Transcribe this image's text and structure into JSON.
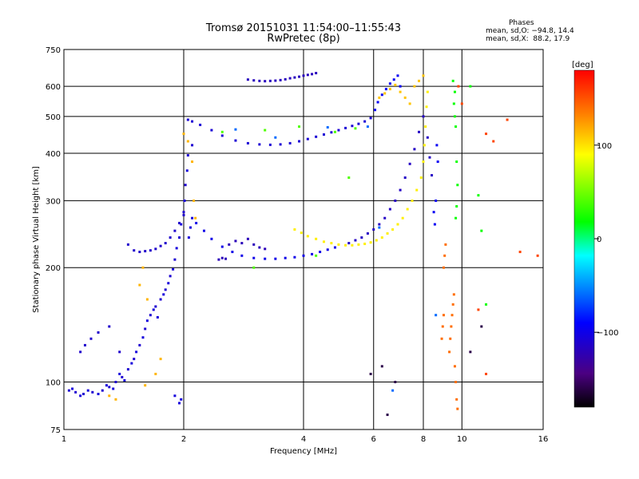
{
  "header": {
    "title_line1": "Tromsø 20151031 11:54:00–11:55:43",
    "title_line2": "RwPretec (8p)",
    "stats_title": "Phases",
    "stats_line1": "mean, sd,O: −94.8, 14.4",
    "stats_line2": "mean, sd,X:  88.2, 17.9"
  },
  "colorbar": {
    "unit": "[deg]",
    "ticks": [
      {
        "value": 100,
        "label": "100"
      },
      {
        "value": 0,
        "label": "0"
      },
      {
        "value": -100,
        "label": "−100"
      }
    ],
    "range": [
      -180,
      180
    ]
  },
  "chart_data": {
    "type": "scatter",
    "title": "Tromsø 20151031 11:54:00–11:55:43",
    "subtitle": "RwPretec (8p)",
    "xlabel": "Frequency [MHz]",
    "ylabel": "Stationary phase Virtual Height [km]",
    "xscale": "log",
    "yscale": "log",
    "xlim": [
      1,
      16
    ],
    "ylim": [
      75,
      750
    ],
    "x_ticks": [
      {
        "value": 1,
        "label": "1"
      },
      {
        "value": 2,
        "label": "2"
      },
      {
        "value": 4,
        "label": "4"
      },
      {
        "value": 6,
        "label": "6"
      },
      {
        "value": 8,
        "label": "8"
      },
      {
        "value": 10,
        "label": "10"
      },
      {
        "value": 16,
        "label": "16"
      }
    ],
    "y_ticks": [
      {
        "value": 75,
        "label": "75"
      },
      {
        "value": 100,
        "label": "100"
      },
      {
        "value": 200,
        "label": "200"
      },
      {
        "value": 300,
        "label": "300"
      },
      {
        "value": 400,
        "label": "400"
      },
      {
        "value": 500,
        "label": "500"
      },
      {
        "value": 600,
        "label": "600"
      },
      {
        "value": 750,
        "label": "750"
      }
    ],
    "grid": true,
    "series": [
      {
        "phase": -110,
        "points": [
          [
            1.03,
            95
          ],
          [
            1.07,
            94
          ],
          [
            1.12,
            93
          ],
          [
            1.18,
            94
          ],
          [
            1.25,
            95
          ],
          [
            1.3,
            97
          ],
          [
            1.35,
            100
          ],
          [
            1.4,
            103
          ],
          [
            1.45,
            108
          ],
          [
            1.5,
            115
          ],
          [
            1.55,
            125
          ],
          [
            1.6,
            138
          ],
          [
            1.65,
            150
          ],
          [
            1.7,
            158
          ],
          [
            1.75,
            165
          ],
          [
            1.8,
            175
          ],
          [
            1.85,
            190
          ],
          [
            1.9,
            210
          ],
          [
            1.95,
            240
          ],
          [
            2.0,
            280
          ],
          [
            2.02,
            330
          ],
          [
            2.05,
            395
          ],
          [
            2.1,
            420
          ]
        ]
      },
      {
        "phase": -105,
        "points": [
          [
            1.05,
            96
          ],
          [
            1.1,
            92
          ],
          [
            1.15,
            95
          ],
          [
            1.22,
            93
          ],
          [
            1.28,
            98
          ],
          [
            1.33,
            96
          ],
          [
            1.38,
            105
          ],
          [
            1.42,
            101
          ],
          [
            1.48,
            112
          ],
          [
            1.52,
            120
          ],
          [
            1.58,
            131
          ],
          [
            1.62,
            145
          ],
          [
            1.68,
            155
          ],
          [
            1.72,
            148
          ],
          [
            1.78,
            170
          ],
          [
            1.83,
            182
          ],
          [
            1.88,
            198
          ],
          [
            1.92,
            225
          ],
          [
            1.97,
            260
          ],
          [
            2.01,
            300
          ],
          [
            2.04,
            360
          ],
          [
            2.06,
            240
          ],
          [
            2.08,
            255
          ],
          [
            2.1,
            270
          ],
          [
            1.95,
            88
          ],
          [
            1.97,
            90
          ],
          [
            1.9,
            92
          ]
        ]
      },
      {
        "phase": -112,
        "points": [
          [
            1.1,
            120
          ],
          [
            1.13,
            125
          ],
          [
            1.17,
            130
          ],
          [
            1.22,
            135
          ],
          [
            1.3,
            140
          ],
          [
            1.38,
            120
          ],
          [
            1.45,
            230
          ],
          [
            1.5,
            222
          ],
          [
            1.55,
            220
          ],
          [
            1.6,
            221
          ],
          [
            1.65,
            222
          ],
          [
            1.7,
            224
          ],
          [
            1.75,
            228
          ],
          [
            1.8,
            232
          ],
          [
            1.85,
            240
          ],
          [
            1.9,
            250
          ],
          [
            1.95,
            262
          ],
          [
            2.0,
            275
          ]
        ]
      },
      {
        "phase": -108,
        "points": [
          [
            2.05,
            490
          ],
          [
            2.1,
            485
          ],
          [
            2.2,
            475
          ],
          [
            2.35,
            460
          ],
          [
            2.5,
            445
          ],
          [
            2.7,
            432
          ],
          [
            2.9,
            425
          ],
          [
            3.1,
            422
          ],
          [
            3.3,
            421
          ],
          [
            3.5,
            422
          ],
          [
            3.7,
            425
          ],
          [
            3.9,
            430
          ],
          [
            4.1,
            436
          ],
          [
            4.3,
            442
          ],
          [
            4.5,
            448
          ],
          [
            4.7,
            454
          ],
          [
            4.9,
            460
          ],
          [
            5.1,
            466
          ],
          [
            5.3,
            472
          ],
          [
            5.5,
            478
          ],
          [
            5.7,
            485
          ],
          [
            5.9,
            495
          ]
        ]
      },
      {
        "phase": -100,
        "points": [
          [
            2.15,
            262
          ],
          [
            2.25,
            250
          ],
          [
            2.35,
            238
          ],
          [
            2.5,
            227
          ],
          [
            2.65,
            220
          ],
          [
            2.8,
            215
          ],
          [
            3.0,
            212
          ],
          [
            3.2,
            211
          ],
          [
            3.4,
            211
          ],
          [
            3.6,
            212
          ],
          [
            3.8,
            213
          ],
          [
            4.0,
            215
          ],
          [
            4.2,
            217
          ],
          [
            4.4,
            220
          ],
          [
            4.6,
            223
          ],
          [
            4.8,
            226
          ]
        ]
      },
      {
        "phase": -118,
        "points": [
          [
            2.9,
            625
          ],
          [
            3.0,
            622
          ],
          [
            3.1,
            620
          ],
          [
            3.2,
            619
          ],
          [
            3.3,
            620
          ],
          [
            3.4,
            621
          ],
          [
            3.5,
            623
          ],
          [
            3.6,
            626
          ],
          [
            3.7,
            630
          ],
          [
            3.8,
            633
          ],
          [
            3.9,
            636
          ],
          [
            4.0,
            640
          ],
          [
            4.1,
            643
          ],
          [
            4.2,
            646
          ],
          [
            4.3,
            650
          ]
        ]
      },
      {
        "phase": -115,
        "points": [
          [
            5.2,
            232
          ],
          [
            5.4,
            236
          ],
          [
            5.6,
            240
          ],
          [
            5.8,
            246
          ],
          [
            6.0,
            252
          ],
          [
            6.2,
            260
          ],
          [
            6.4,
            270
          ],
          [
            6.6,
            285
          ],
          [
            6.8,
            300
          ],
          [
            7.0,
            320
          ],
          [
            7.2,
            345
          ],
          [
            7.4,
            375
          ],
          [
            7.6,
            410
          ],
          [
            7.8,
            455
          ],
          [
            8.0,
            500
          ],
          [
            8.2,
            440
          ],
          [
            8.3,
            390
          ],
          [
            8.4,
            350
          ]
        ]
      },
      {
        "phase": -95,
        "points": [
          [
            6.05,
            520
          ],
          [
            6.15,
            545
          ],
          [
            6.3,
            570
          ],
          [
            6.45,
            590
          ],
          [
            6.6,
            610
          ],
          [
            6.75,
            625
          ],
          [
            6.9,
            640
          ],
          [
            7.0,
            600
          ],
          [
            8.5,
            280
          ],
          [
            8.55,
            260
          ],
          [
            8.6,
            300
          ],
          [
            8.65,
            420
          ],
          [
            8.7,
            380
          ]
        ]
      },
      {
        "phase": -120,
        "points": [
          [
            2.6,
            230
          ],
          [
            2.7,
            235
          ],
          [
            2.8,
            232
          ],
          [
            2.9,
            238
          ],
          [
            3.0,
            230
          ],
          [
            3.1,
            226
          ],
          [
            3.2,
            224
          ],
          [
            2.45,
            210
          ],
          [
            2.5,
            212
          ],
          [
            2.55,
            211
          ]
        ]
      },
      {
        "phase": 95,
        "points": [
          [
            3.8,
            252
          ],
          [
            3.95,
            247
          ],
          [
            4.1,
            242
          ],
          [
            4.3,
            238
          ],
          [
            4.5,
            234
          ],
          [
            4.7,
            232
          ],
          [
            4.9,
            230
          ],
          [
            5.1,
            229
          ],
          [
            5.3,
            229
          ],
          [
            5.5,
            230
          ],
          [
            5.7,
            231
          ],
          [
            5.9,
            233
          ],
          [
            6.1,
            236
          ],
          [
            6.3,
            240
          ],
          [
            6.5,
            246
          ],
          [
            6.7,
            252
          ],
          [
            6.9,
            260
          ],
          [
            7.1,
            270
          ],
          [
            7.3,
            285
          ],
          [
            7.5,
            300
          ],
          [
            7.7,
            320
          ],
          [
            7.9,
            345
          ],
          [
            8.0,
            380
          ],
          [
            8.05,
            420
          ],
          [
            8.1,
            470
          ],
          [
            8.15,
            530
          ],
          [
            8.2,
            580
          ]
        ]
      },
      {
        "phase": 110,
        "points": [
          [
            6.2,
            560
          ],
          [
            6.4,
            575
          ],
          [
            6.6,
            590
          ],
          [
            6.8,
            605
          ],
          [
            7.0,
            580
          ],
          [
            7.2,
            560
          ],
          [
            7.4,
            540
          ],
          [
            7.6,
            600
          ],
          [
            7.8,
            620
          ],
          [
            8.0,
            640
          ]
        ]
      },
      {
        "phase": 115,
        "points": [
          [
            2.0,
            450
          ],
          [
            2.05,
            430
          ],
          [
            2.1,
            380
          ],
          [
            2.12,
            300
          ],
          [
            2.14,
            270
          ],
          [
            1.75,
            115
          ],
          [
            1.7,
            105
          ],
          [
            1.6,
            98
          ],
          [
            1.55,
            180
          ],
          [
            1.58,
            200
          ],
          [
            1.62,
            165
          ],
          [
            1.35,
            90
          ],
          [
            1.3,
            92
          ]
        ]
      },
      {
        "phase": 140,
        "points": [
          [
            9.3,
            120
          ],
          [
            9.35,
            130
          ],
          [
            9.4,
            140
          ],
          [
            9.45,
            150
          ],
          [
            9.5,
            160
          ],
          [
            9.55,
            170
          ],
          [
            9.6,
            110
          ],
          [
            9.65,
            100
          ],
          [
            9.7,
            90
          ],
          [
            9.75,
            85
          ],
          [
            9.0,
            200
          ],
          [
            9.05,
            215
          ],
          [
            9.1,
            230
          ],
          [
            8.9,
            130
          ],
          [
            8.95,
            140
          ],
          [
            9.0,
            150
          ]
        ]
      },
      {
        "phase": 155,
        "points": [
          [
            11.5,
            450
          ],
          [
            12.0,
            430
          ],
          [
            13.0,
            490
          ],
          [
            11.0,
            155
          ],
          [
            11.5,
            105
          ],
          [
            14.0,
            220
          ],
          [
            15.5,
            215
          ],
          [
            10.0,
            540
          ],
          [
            9.8,
            600
          ]
        ]
      },
      {
        "phase": 20,
        "points": [
          [
            9.5,
            620
          ],
          [
            9.6,
            580
          ],
          [
            9.55,
            540
          ],
          [
            9.6,
            500
          ],
          [
            9.65,
            470
          ],
          [
            9.7,
            380
          ],
          [
            9.75,
            330
          ],
          [
            9.7,
            290
          ],
          [
            9.65,
            270
          ],
          [
            10.5,
            600
          ],
          [
            11.0,
            310
          ],
          [
            11.2,
            250
          ],
          [
            11.5,
            160
          ]
        ]
      },
      {
        "phase": -160,
        "points": [
          [
            6.5,
            82
          ],
          [
            6.3,
            110
          ],
          [
            5.9,
            105
          ],
          [
            6.8,
            100
          ],
          [
            11.2,
            140
          ],
          [
            10.5,
            120
          ]
        ]
      },
      {
        "phase": 40,
        "points": [
          [
            2.5,
            455
          ],
          [
            3.2,
            460
          ],
          [
            3.9,
            470
          ],
          [
            4.8,
            455
          ],
          [
            5.4,
            465
          ],
          [
            5.2,
            345
          ],
          [
            4.3,
            215
          ],
          [
            3.0,
            200
          ]
        ]
      },
      {
        "phase": -60,
        "points": [
          [
            2.7,
            462
          ],
          [
            3.4,
            440
          ],
          [
            4.6,
            468
          ],
          [
            5.8,
            470
          ],
          [
            6.2,
            255
          ],
          [
            6.7,
            95
          ],
          [
            8.6,
            150
          ]
        ]
      }
    ]
  }
}
